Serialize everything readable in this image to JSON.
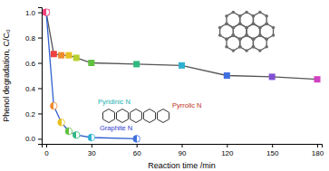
{
  "chart_data": {
    "type": "line",
    "xlabel": "Reaction time /min",
    "ylabel": "Phenol degradation, C/C₀",
    "xlim": [
      -3,
      183
    ],
    "ylim": [
      -0.04,
      1.04
    ],
    "xticks": [
      0,
      30,
      60,
      90,
      120,
      150,
      180
    ],
    "yticks": [
      {
        "value": 0,
        "label": "0.0"
      },
      {
        "value": 0.2,
        "label": "0.2"
      },
      {
        "value": 0.4,
        "label": "0.4"
      },
      {
        "value": 0.6,
        "label": "0.6"
      },
      {
        "value": 0.8,
        "label": "0.8"
      },
      {
        "value": 1,
        "label": "1.0"
      }
    ],
    "grid": false,
    "series": [
      {
        "color": "#555555",
        "marker": "square",
        "line_style": "solid",
        "x": [
          0,
          5,
          10,
          15,
          20,
          30,
          60,
          90,
          120,
          150,
          180
        ],
        "values": [
          1.0,
          0.67,
          0.66,
          0.66,
          0.64,
          0.6,
          0.59,
          0.58,
          0.5,
          0.49,
          0.47
        ],
        "colors": [
          "#f0407a",
          "#f04040",
          "#f08a30",
          "#e8c020",
          "#b8d030",
          "#60c040",
          "#30b880",
          "#30b0d0",
          "#4070e0",
          "#8050d0",
          "#d040c0"
        ]
      },
      {
        "color": "#3060d0",
        "marker": "circle",
        "line_style": "solid",
        "x": [
          0,
          5,
          10,
          15,
          20,
          30,
          60
        ],
        "values": [
          1.0,
          0.26,
          0.13,
          0.06,
          0.03,
          0.01,
          0.0
        ],
        "colors": [
          "#f0407a",
          "#f08a30",
          "#e8c020",
          "#60c040",
          "#30b880",
          "#30b0d0",
          "#4070e0"
        ]
      }
    ],
    "annotations": [
      {
        "text": "Pyridinic N",
        "color": "#20b0b0"
      },
      {
        "text": "Pyrrolic N",
        "color": "#c03020"
      },
      {
        "text": "Graphite N",
        "color": "#3040d0"
      }
    ]
  }
}
